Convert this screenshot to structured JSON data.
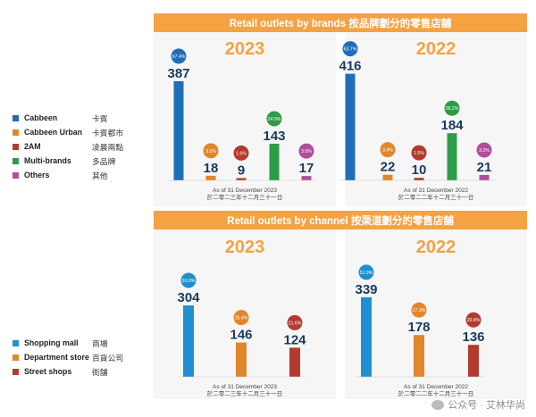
{
  "brands_banner": "Retail outlets by brands 按品牌劃分的零售店舗",
  "channel_banner": "Retail outlets by channel 按渠道劃分的零售店舗",
  "brands_legend": [
    {
      "en": "Cabbeen",
      "cn": "卡賓",
      "color": "#1f6fb6"
    },
    {
      "en": "Cabbeen Urban",
      "cn": "卡賓都市",
      "color": "#e2862b"
    },
    {
      "en": "2AM",
      "cn": "凌晨兩點",
      "color": "#b23a2e"
    },
    {
      "en": "Multi-brands",
      "cn": "多品牌",
      "color": "#2e9c47"
    },
    {
      "en": "Others",
      "cn": "其他",
      "color": "#b04e9e"
    }
  ],
  "channel_legend": [
    {
      "en": "Shopping mall",
      "cn": "商場",
      "color": "#1f8fd0"
    },
    {
      "en": "Department store",
      "cn": "百貨公司",
      "color": "#e2862b"
    },
    {
      "en": "Street shops",
      "cn": "街舗",
      "color": "#b23a2e"
    }
  ],
  "chart_data": [
    {
      "type": "bar",
      "title": "2023",
      "categories": [
        "Cabbeen",
        "Cabbeen Urban",
        "2AM",
        "Multi-brands",
        "Others"
      ],
      "values": [
        387,
        18,
        9,
        143,
        17
      ],
      "percent_labels": [
        "67.4%",
        "3.1%",
        "1.6%",
        "24.9%",
        "3.0%"
      ],
      "colors": [
        "#1f6fb6",
        "#e2862b",
        "#b23a2e",
        "#2e9c47",
        "#b04e9e"
      ],
      "note_en": "As of 31 December 2023",
      "note_cn": "於二零二三年十二月三十一日"
    },
    {
      "type": "bar",
      "title": "2022",
      "categories": [
        "Cabbeen",
        "Cabbeen Urban",
        "2AM",
        "Multi-brands",
        "Others"
      ],
      "values": [
        416,
        22,
        10,
        184,
        21
      ],
      "percent_labels": [
        "63.7%",
        "3.4%",
        "1.5%",
        "28.2%",
        "3.2%"
      ],
      "colors": [
        "#1f6fb6",
        "#e2862b",
        "#b23a2e",
        "#2e9c47",
        "#b04e9e"
      ],
      "note_en": "As of 31 December 2022",
      "note_cn": "於二零二二年十二月三十一日"
    },
    {
      "type": "bar",
      "title": "2023",
      "categories": [
        "Shopping mall",
        "Department store",
        "Street shops"
      ],
      "values": [
        304,
        146,
        124
      ],
      "percent_labels": [
        "53.0%",
        "25.4%",
        "21.6%"
      ],
      "colors": [
        "#1f8fd0",
        "#e2862b",
        "#b23a2e"
      ],
      "note_en": "As of 31 December 2023",
      "note_cn": "於二零二三年十二月三十一日"
    },
    {
      "type": "bar",
      "title": "2022",
      "categories": [
        "Shopping mall",
        "Department store",
        "Street shops"
      ],
      "values": [
        339,
        178,
        136
      ],
      "percent_labels": [
        "51.9%",
        "27.3%",
        "20.8%"
      ],
      "colors": [
        "#1f8fd0",
        "#e2862b",
        "#b23a2e"
      ],
      "note_en": "As of 31 December 2022",
      "note_cn": "於二零二二年十二月三十一日"
    }
  ],
  "watermark": "公众号 · 艾林华尚"
}
